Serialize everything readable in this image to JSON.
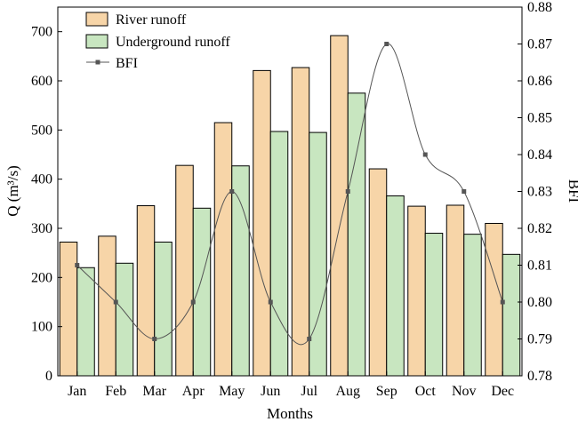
{
  "chart_data": {
    "type": "bar",
    "categories": [
      "Jan",
      "Feb",
      "Mar",
      "Apr",
      "May",
      "Jun",
      "Jul",
      "Aug",
      "Sep",
      "Oct",
      "Nov",
      "Dec"
    ],
    "series": [
      {
        "name": "River runoff",
        "type": "bar",
        "axis": "left",
        "color": "#f7d5a8",
        "values": [
          272,
          284,
          346,
          428,
          515,
          621,
          627,
          692,
          421,
          345,
          347,
          310
        ]
      },
      {
        "name": "Underground runoff",
        "type": "bar",
        "axis": "left",
        "color": "#c8e6c0",
        "values": [
          220,
          229,
          272,
          341,
          427,
          497,
          495,
          575,
          366,
          290,
          288,
          247
        ]
      },
      {
        "name": "BFI",
        "type": "line",
        "axis": "right",
        "color": "#555555",
        "values": [
          0.81,
          0.8,
          0.79,
          0.8,
          0.83,
          0.8,
          0.79,
          0.83,
          0.87,
          0.84,
          0.83,
          0.8
        ]
      }
    ],
    "xlabel": "Months",
    "ylabel_left": "Q (m³/s)",
    "ylabel_right": "BFI",
    "ylim_left": [
      0,
      750
    ],
    "ylim_right": [
      0.78,
      0.88
    ],
    "yticks_left": [
      "0",
      "100",
      "200",
      "300",
      "400",
      "500",
      "600",
      "700"
    ],
    "yticks_right": [
      "0.78",
      "0.79",
      "0.80",
      "0.81",
      "0.82",
      "0.83",
      "0.84",
      "0.85",
      "0.86",
      "0.87",
      "0.88"
    ],
    "legend": {
      "position": "top-left",
      "entries": [
        "River runoff",
        "Underground runoff",
        "BFI"
      ]
    },
    "grid": false
  }
}
